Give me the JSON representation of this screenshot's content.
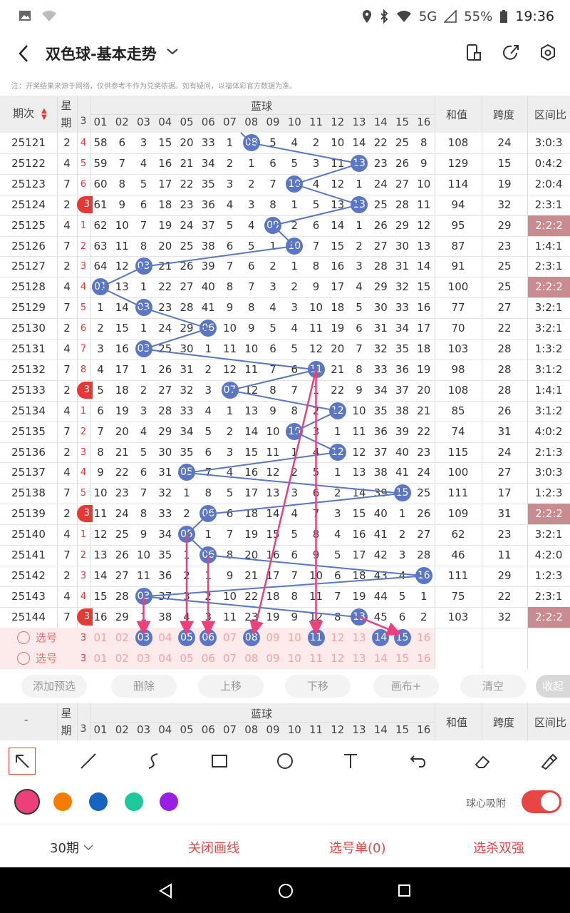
{
  "status": {
    "signal": "5G",
    "battery": "55%",
    "time": "19:36"
  },
  "app": {
    "title": "双色球-基本走势"
  },
  "notice": "注：开奖结果来源于网络，仅供参考不作为兑奖依据。如有疑问，以福体彩官方数据为准。",
  "header": {
    "period": "期次",
    "week": "星期",
    "blue": "蓝球",
    "sum": "和值",
    "span": "跨度",
    "ratio": "区间比",
    "red_last": "3",
    "blue_numbers": [
      "01",
      "02",
      "03",
      "04",
      "05",
      "06",
      "07",
      "08",
      "09",
      "10",
      "11",
      "12",
      "13",
      "14",
      "15",
      "16"
    ]
  },
  "rows": [
    {
      "period": "25121",
      "week": "2",
      "redtail": "4",
      "blue_hit": 8,
      "cells": [
        "58",
        "6",
        "3",
        "15",
        "20",
        "33",
        "1",
        "08",
        "5",
        "4",
        "2",
        "10",
        "14",
        "22",
        "25",
        "8"
      ],
      "sum": "108",
      "span": "24",
      "ratio": "3:0:3",
      "hl": false
    },
    {
      "period": "25122",
      "week": "4",
      "redtail": "5",
      "blue_hit": 13,
      "cells": [
        "59",
        "7",
        "4",
        "16",
        "21",
        "34",
        "2",
        "1",
        "6",
        "5",
        "3",
        "11",
        "13",
        "23",
        "26",
        "9"
      ],
      "sum": "129",
      "span": "15",
      "ratio": "0:4:2",
      "hl": false
    },
    {
      "period": "25123",
      "week": "7",
      "redtail": "6",
      "blue_hit": 10,
      "cells": [
        "60",
        "8",
        "5",
        "17",
        "22",
        "35",
        "3",
        "2",
        "7",
        "10",
        "4",
        "12",
        "1",
        "24",
        "27",
        "10"
      ],
      "sum": "114",
      "span": "19",
      "ratio": "2:0:4",
      "hl": false
    },
    {
      "period": "25124",
      "week": "2",
      "redtail": "3",
      "redball": true,
      "blue_hit": 13,
      "cells": [
        "61",
        "9",
        "6",
        "18",
        "23",
        "36",
        "4",
        "3",
        "8",
        "1",
        "5",
        "13",
        "13",
        "25",
        "28",
        "11"
      ],
      "sum": "94",
      "span": "32",
      "ratio": "2:3:1",
      "hl": false
    },
    {
      "period": "25125",
      "week": "4",
      "redtail": "1",
      "blue_hit": 9,
      "cells": [
        "62",
        "10",
        "7",
        "19",
        "24",
        "37",
        "5",
        "4",
        "09",
        "2",
        "6",
        "14",
        "1",
        "26",
        "29",
        "12"
      ],
      "sum": "95",
      "span": "29",
      "ratio": "2:2:2",
      "hl": true
    },
    {
      "period": "25126",
      "week": "7",
      "redtail": "2",
      "blue_hit": 10,
      "cells": [
        "63",
        "11",
        "8",
        "20",
        "25",
        "38",
        "6",
        "5",
        "1",
        "10",
        "7",
        "15",
        "2",
        "27",
        "30",
        "13"
      ],
      "sum": "87",
      "span": "23",
      "ratio": "1:4:1",
      "hl": false
    },
    {
      "period": "25127",
      "week": "2",
      "redtail": "3",
      "blue_hit": 3,
      "cells": [
        "64",
        "12",
        "03",
        "21",
        "26",
        "39",
        "7",
        "6",
        "2",
        "1",
        "8",
        "16",
        "3",
        "28",
        "31",
        "14"
      ],
      "sum": "91",
      "span": "25",
      "ratio": "2:3:1",
      "hl": false
    },
    {
      "period": "25128",
      "week": "4",
      "redtail": "4",
      "blue_hit": 1,
      "cells": [
        "01",
        "13",
        "1",
        "22",
        "27",
        "40",
        "8",
        "7",
        "3",
        "2",
        "9",
        "17",
        "4",
        "29",
        "32",
        "15"
      ],
      "sum": "100",
      "span": "25",
      "ratio": "2:2:2",
      "hl": true
    },
    {
      "period": "25129",
      "week": "7",
      "redtail": "5",
      "blue_hit": 3,
      "cells": [
        "1",
        "14",
        "03",
        "23",
        "28",
        "41",
        "9",
        "8",
        "4",
        "3",
        "10",
        "18",
        "5",
        "30",
        "33",
        "16"
      ],
      "sum": "77",
      "span": "27",
      "ratio": "3:2:1",
      "hl": false
    },
    {
      "period": "25130",
      "week": "2",
      "redtail": "6",
      "blue_hit": 6,
      "cells": [
        "2",
        "15",
        "1",
        "24",
        "29",
        "06",
        "10",
        "9",
        "5",
        "4",
        "11",
        "19",
        "6",
        "31",
        "34",
        "17"
      ],
      "sum": "70",
      "span": "22",
      "ratio": "3:2:1",
      "hl": false
    },
    {
      "period": "25131",
      "week": "4",
      "redtail": "7",
      "blue_hit": 3,
      "cells": [
        "3",
        "16",
        "03",
        "25",
        "30",
        "1",
        "11",
        "10",
        "6",
        "5",
        "12",
        "20",
        "7",
        "32",
        "35",
        "18"
      ],
      "sum": "103",
      "span": "28",
      "ratio": "1:3:2",
      "hl": false
    },
    {
      "period": "25132",
      "week": "7",
      "redtail": "8",
      "blue_hit": 11,
      "cells": [
        "4",
        "17",
        "1",
        "26",
        "31",
        "2",
        "12",
        "11",
        "7",
        "6",
        "11",
        "21",
        "8",
        "33",
        "36",
        "19"
      ],
      "sum": "98",
      "span": "28",
      "ratio": "3:1:2",
      "hl": false
    },
    {
      "period": "25133",
      "week": "2",
      "redtail": "3",
      "redball": true,
      "blue_hit": 7,
      "cells": [
        "5",
        "18",
        "2",
        "27",
        "32",
        "3",
        "07",
        "12",
        "8",
        "7",
        "1",
        "22",
        "9",
        "34",
        "37",
        "20"
      ],
      "sum": "108",
      "span": "28",
      "ratio": "1:4:1",
      "hl": false
    },
    {
      "period": "25134",
      "week": "4",
      "redtail": "1",
      "blue_hit": 12,
      "cells": [
        "6",
        "19",
        "3",
        "28",
        "33",
        "4",
        "1",
        "13",
        "9",
        "8",
        "2",
        "12",
        "10",
        "35",
        "38",
        "21"
      ],
      "sum": "85",
      "span": "26",
      "ratio": "3:1:2",
      "hl": false
    },
    {
      "period": "25135",
      "week": "7",
      "redtail": "2",
      "blue_hit": 10,
      "cells": [
        "7",
        "20",
        "4",
        "29",
        "34",
        "5",
        "2",
        "14",
        "10",
        "10",
        "3",
        "1",
        "11",
        "36",
        "39",
        "22"
      ],
      "sum": "74",
      "span": "31",
      "ratio": "4:0:2",
      "hl": false
    },
    {
      "period": "25136",
      "week": "2",
      "redtail": "3",
      "blue_hit": 12,
      "cells": [
        "8",
        "21",
        "5",
        "30",
        "35",
        "6",
        "3",
        "15",
        "11",
        "1",
        "4",
        "12",
        "12",
        "37",
        "40",
        "23"
      ],
      "sum": "115",
      "span": "24",
      "ratio": "2:1:3",
      "hl": false
    },
    {
      "period": "25137",
      "week": "4",
      "redtail": "4",
      "blue_hit": 5,
      "cells": [
        "9",
        "22",
        "6",
        "31",
        "05",
        "7",
        "4",
        "16",
        "12",
        "2",
        "5",
        "1",
        "13",
        "38",
        "41",
        "24"
      ],
      "sum": "100",
      "span": "27",
      "ratio": "3:0:3",
      "hl": false
    },
    {
      "period": "25138",
      "week": "7",
      "redtail": "5",
      "blue_hit": 15,
      "cells": [
        "10",
        "23",
        "7",
        "32",
        "1",
        "8",
        "5",
        "17",
        "13",
        "3",
        "6",
        "2",
        "14",
        "39",
        "15",
        "25"
      ],
      "sum": "111",
      "span": "17",
      "ratio": "1:2:3",
      "hl": false
    },
    {
      "period": "25139",
      "week": "2",
      "redtail": "3",
      "redball": true,
      "blue_hit": 6,
      "cells": [
        "11",
        "24",
        "8",
        "33",
        "2",
        "06",
        "6",
        "18",
        "14",
        "4",
        "7",
        "3",
        "15",
        "40",
        "1",
        "26"
      ],
      "sum": "109",
      "span": "31",
      "ratio": "2:2:2",
      "hl": true
    },
    {
      "period": "25140",
      "week": "4",
      "redtail": "1",
      "blue_hit": 5,
      "cells": [
        "12",
        "25",
        "9",
        "34",
        "05",
        "1",
        "7",
        "19",
        "15",
        "5",
        "8",
        "4",
        "16",
        "41",
        "2",
        "27"
      ],
      "sum": "62",
      "span": "23",
      "ratio": "3:2:1",
      "hl": false
    },
    {
      "period": "25141",
      "week": "7",
      "redtail": "2",
      "blue_hit": 6,
      "cells": [
        "13",
        "26",
        "10",
        "35",
        "1",
        "06",
        "8",
        "20",
        "16",
        "6",
        "9",
        "5",
        "17",
        "42",
        "3",
        "28"
      ],
      "sum": "46",
      "span": "11",
      "ratio": "4:2:0",
      "hl": false
    },
    {
      "period": "25142",
      "week": "2",
      "redtail": "3",
      "blue_hit": 16,
      "cells": [
        "14",
        "27",
        "11",
        "36",
        "2",
        "1",
        "9",
        "21",
        "17",
        "7",
        "10",
        "6",
        "18",
        "43",
        "4",
        "16"
      ],
      "sum": "111",
      "span": "29",
      "ratio": "1:2:3",
      "hl": false
    },
    {
      "period": "25143",
      "week": "4",
      "redtail": "4",
      "blue_hit": 3,
      "cells": [
        "15",
        "28",
        "03",
        "37",
        "3",
        "2",
        "10",
        "22",
        "18",
        "8",
        "11",
        "7",
        "19",
        "44",
        "5",
        "1"
      ],
      "sum": "75",
      "span": "22",
      "ratio": "2:3:1",
      "hl": false
    },
    {
      "period": "25144",
      "week": "7",
      "redtail": "3",
      "redball": true,
      "blue_hit": 13,
      "cells": [
        "16",
        "29",
        "1",
        "38",
        "4",
        "3",
        "11",
        "23",
        "19",
        "9",
        "12",
        "8",
        "13",
        "45",
        "6",
        "2"
      ],
      "sum": "103",
      "span": "32",
      "ratio": "2:2:2",
      "hl": true
    }
  ],
  "pick": {
    "label": "选号",
    "selected": [
      3,
      5,
      6,
      8,
      11,
      14,
      15
    ]
  },
  "actions": {
    "add": "添加预选",
    "del": "删除",
    "up": "上移",
    "down": "下移",
    "canvas": "画布+",
    "clear": "清空",
    "fold": "收起"
  },
  "colors": [
    "#ee3f7a",
    "#f57c00",
    "#1565c0",
    "#1dc89a",
    "#9a1fe6"
  ],
  "snap_label": "球心吸附",
  "bottom": {
    "periods": "30期",
    "close": "关闭画线",
    "picklist": "选号单(0)",
    "strong": "选杀双强"
  }
}
